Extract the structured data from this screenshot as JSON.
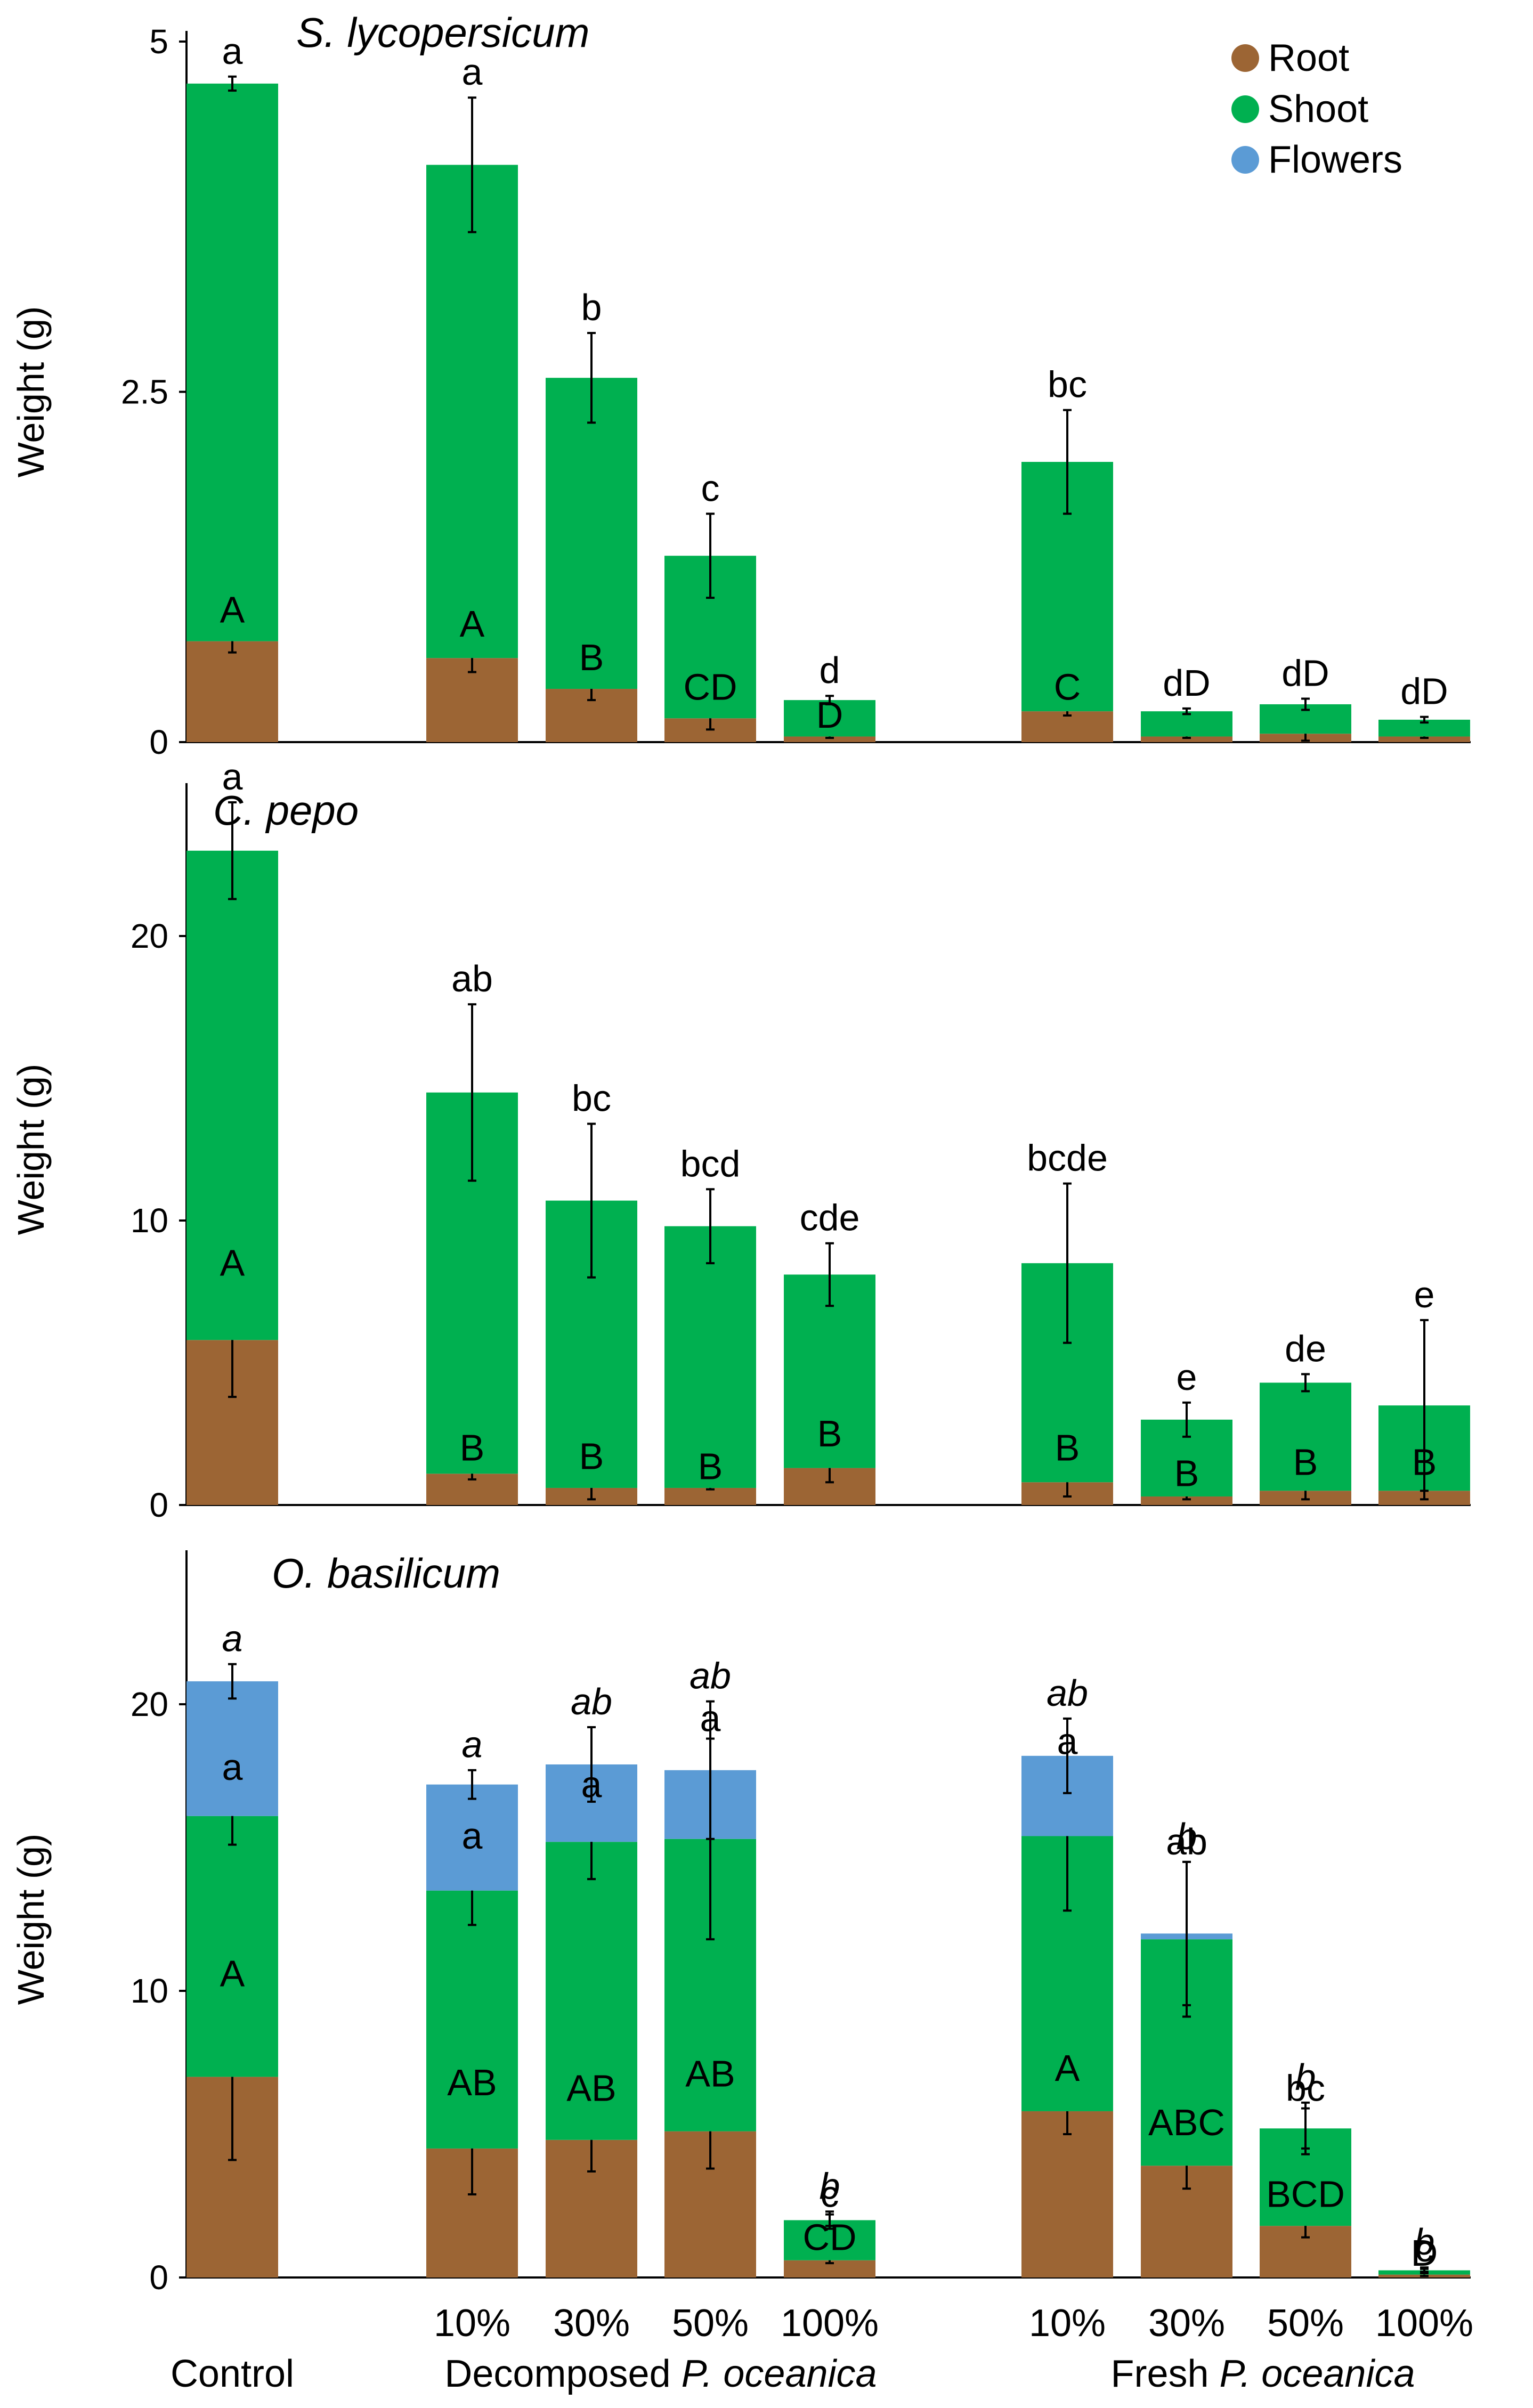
{
  "colors": {
    "root": "#9C6534",
    "shoot": "#00B050",
    "flowers": "#5B9BD5",
    "axis": "#000000"
  },
  "legend": [
    {
      "key": "root",
      "label": "Root"
    },
    {
      "key": "shoot",
      "label": "Shoot"
    },
    {
      "key": "flowers",
      "label": "Flowers"
    }
  ],
  "x_axis": {
    "categories": [
      "Control",
      "10%",
      "30%",
      "50%",
      "100%",
      "10%",
      "30%",
      "50%",
      "100%"
    ],
    "category_labels": [
      "",
      "10%",
      "30%",
      "50%",
      "100%",
      "10%",
      "30%",
      "50%",
      "100%"
    ],
    "group_labels": {
      "control": "Control",
      "decomposed_prefix": "Decomposed ",
      "decomposed_species": "P. oceanica",
      "fresh_prefix": "Fresh ",
      "fresh_species": "P. oceanica"
    }
  },
  "chart_data": [
    {
      "type": "bar",
      "stacked": true,
      "title": "S. lycopersicum",
      "ylabel": "Weight (g)",
      "ylim": [
        0,
        5
      ],
      "yticks": [
        0,
        2.5,
        5
      ],
      "ytick_labels": [
        "0",
        "2.5",
        "5"
      ],
      "series": [
        {
          "name": "Root",
          "color_key": "root",
          "values": [
            0.72,
            0.6,
            0.38,
            0.17,
            0.04,
            0.22,
            0.04,
            0.06,
            0.04
          ],
          "errors": [
            0.08,
            0.1,
            0.08,
            0.08,
            0.01,
            0.03,
            0.01,
            0.05,
            0.01
          ],
          "letters": [
            "A",
            "A",
            "B",
            "CD",
            "D",
            "C",
            "",
            "",
            ""
          ],
          "letters_italic": false
        },
        {
          "name": "Shoot",
          "color_key": "shoot",
          "values": [
            3.98,
            3.52,
            2.22,
            1.16,
            0.26,
            1.78,
            0.18,
            0.21,
            0.12
          ],
          "errors": [
            0.05,
            0.48,
            0.32,
            0.3,
            0.03,
            0.37,
            0.02,
            0.04,
            0.02
          ],
          "letters": [
            "a",
            "a",
            "b",
            "c",
            "d",
            "bc",
            "dD",
            "dD",
            "dD"
          ],
          "letters_italic": false
        }
      ]
    },
    {
      "type": "bar",
      "stacked": true,
      "title": "C. pepo",
      "ylabel": "Weight (g)",
      "ylim": [
        0,
        25
      ],
      "yticks": [
        0,
        10,
        20
      ],
      "ytick_labels": [
        "0",
        "10",
        "20"
      ],
      "series": [
        {
          "name": "Root",
          "color_key": "root",
          "values": [
            5.8,
            1.1,
            0.6,
            0.6,
            1.3,
            0.8,
            0.3,
            0.5,
            0.5
          ],
          "errors": [
            2.0,
            0.2,
            0.4,
            0.05,
            0.5,
            0.5,
            0.1,
            0.3,
            0.3
          ],
          "letters": [
            "A",
            "B",
            "B",
            "B",
            "B",
            "B",
            "B",
            "B",
            "B"
          ],
          "letters_italic": false
        },
        {
          "name": "Shoot",
          "color_key": "shoot",
          "values": [
            17.2,
            13.4,
            10.1,
            9.2,
            6.8,
            7.7,
            2.7,
            3.8,
            3.0
          ],
          "errors": [
            1.7,
            3.1,
            2.7,
            1.3,
            1.1,
            2.8,
            0.6,
            0.3,
            3.0
          ],
          "letters": [
            "a",
            "ab",
            "bc",
            "bcd",
            "cde",
            "bcde",
            "e",
            "de",
            "e"
          ],
          "letters_italic": false
        }
      ]
    },
    {
      "type": "bar",
      "stacked": true,
      "title": "O. basilicum",
      "ylabel": "Weight (g)",
      "ylim": [
        0,
        25
      ],
      "yticks": [
        0,
        10,
        20
      ],
      "ytick_labels": [
        "0",
        "10",
        "20"
      ],
      "series": [
        {
          "name": "Root",
          "color_key": "root",
          "values": [
            7.0,
            4.5,
            4.8,
            5.1,
            0.6,
            5.8,
            3.9,
            1.8,
            0.1
          ],
          "errors": [
            2.9,
            1.6,
            1.1,
            1.3,
            0.1,
            0.8,
            0.8,
            0.4,
            0.05
          ],
          "letters": [
            "A",
            "AB",
            "AB",
            "AB",
            "CD",
            "A",
            "ABC",
            "BCD",
            "D"
          ],
          "letters_italic": false
        },
        {
          "name": "Shoot",
          "color_key": "shoot",
          "values": [
            9.1,
            9.0,
            10.4,
            10.2,
            1.4,
            9.6,
            7.9,
            3.4,
            0.15
          ],
          "errors": [
            1.0,
            1.2,
            1.3,
            3.5,
            0.2,
            2.6,
            2.7,
            0.7,
            0.05
          ],
          "letters": [
            "a",
            "a",
            "a",
            "a",
            "c",
            "a",
            "ab",
            "bc",
            "c"
          ],
          "letters_italic": false
        },
        {
          "name": "Flowers",
          "color_key": "flowers",
          "values": [
            4.7,
            3.7,
            2.7,
            2.4,
            0.0,
            2.8,
            0.2,
            0.0,
            0.0
          ],
          "errors": [
            0.6,
            0.5,
            1.3,
            2.4,
            0.3,
            1.3,
            2.5,
            0.9,
            0.1
          ],
          "letters": [
            "a",
            "a",
            "ab",
            "ab",
            "b",
            "ab",
            "b",
            "b",
            "b"
          ],
          "letters_italic": true
        }
      ]
    }
  ]
}
